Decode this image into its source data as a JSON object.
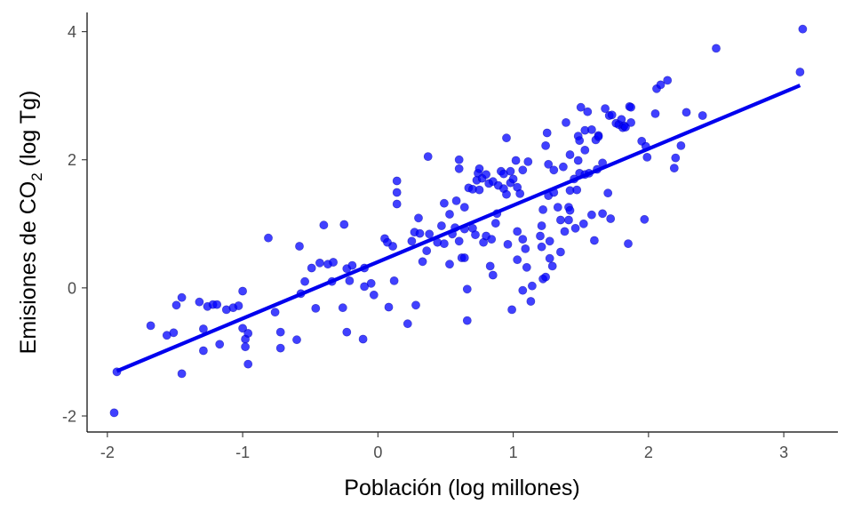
{
  "chart_data": {
    "type": "scatter",
    "xlabel": "Población (log millones)",
    "ylabel": {
      "pre": "Emisiones de CO",
      "sub": "2",
      "post": " (log Tg)"
    },
    "xlim": [
      -2.15,
      3.4
    ],
    "ylim": [
      -2.25,
      4.3
    ],
    "xticks": [
      -2,
      -1,
      0,
      1,
      2,
      3
    ],
    "yticks": [
      -2,
      0,
      2,
      4
    ],
    "xtick_labels": [
      "-2",
      "-1",
      "0",
      "1",
      "2",
      "3"
    ],
    "ytick_labels": [
      "-2",
      "0",
      "2",
      "4"
    ],
    "grid": false,
    "point_color": "#0000ff",
    "line_color": "#0000ee",
    "fit_line": {
      "x": [
        -1.93,
        3.12
      ],
      "y": [
        -1.3,
        3.16
      ]
    },
    "points": [
      [
        -1.95,
        -1.95
      ],
      [
        -1.93,
        -1.31
      ],
      [
        -1.68,
        -0.59
      ],
      [
        -1.56,
        -0.74
      ],
      [
        -1.51,
        -0.7
      ],
      [
        -1.49,
        -0.27
      ],
      [
        -1.45,
        -0.15
      ],
      [
        -1.45,
        -1.34
      ],
      [
        -1.32,
        -0.22
      ],
      [
        -1.29,
        -0.64
      ],
      [
        -1.29,
        -0.98
      ],
      [
        -1.26,
        -0.29
      ],
      [
        -1.22,
        -0.26
      ],
      [
        -1.19,
        -0.26
      ],
      [
        -1.17,
        -0.88
      ],
      [
        -1.12,
        -0.34
      ],
      [
        -1.07,
        -0.31
      ],
      [
        -1.03,
        -0.28
      ],
      [
        -1.0,
        -0.05
      ],
      [
        -1.0,
        -0.63
      ],
      [
        -0.98,
        -0.8
      ],
      [
        -0.98,
        -0.92
      ],
      [
        -0.96,
        -0.71
      ],
      [
        -0.96,
        -1.19
      ],
      [
        -0.81,
        0.78
      ],
      [
        -0.76,
        -0.38
      ],
      [
        -0.72,
        -0.94
      ],
      [
        -0.72,
        -0.69
      ],
      [
        -0.6,
        -0.81
      ],
      [
        -0.58,
        0.65
      ],
      [
        -0.57,
        -0.09
      ],
      [
        -0.54,
        0.1
      ],
      [
        -0.49,
        0.31
      ],
      [
        -0.46,
        -0.32
      ],
      [
        -0.43,
        0.39
      ],
      [
        -0.4,
        0.98
      ],
      [
        -0.37,
        0.37
      ],
      [
        -0.34,
        0.1
      ],
      [
        -0.33,
        0.4
      ],
      [
        -0.26,
        -0.31
      ],
      [
        -0.25,
        0.99
      ],
      [
        -0.23,
        0.3
      ],
      [
        -0.23,
        -0.69
      ],
      [
        -0.21,
        0.11
      ],
      [
        -0.19,
        0.35
      ],
      [
        -0.11,
        -0.8
      ],
      [
        -0.1,
        0.31
      ],
      [
        -0.1,
        0.02
      ],
      [
        -0.05,
        0.07
      ],
      [
        -0.03,
        -0.11
      ],
      [
        0.05,
        0.77
      ],
      [
        0.07,
        0.71
      ],
      [
        0.08,
        -0.3
      ],
      [
        0.11,
        0.65
      ],
      [
        0.12,
        0.11
      ],
      [
        0.14,
        1.67
      ],
      [
        0.14,
        1.49
      ],
      [
        0.14,
        1.31
      ],
      [
        0.22,
        -0.56
      ],
      [
        0.25,
        0.73
      ],
      [
        0.27,
        0.87
      ],
      [
        0.28,
        -0.27
      ],
      [
        0.3,
        1.09
      ],
      [
        0.31,
        0.85
      ],
      [
        0.33,
        0.41
      ],
      [
        0.36,
        0.58
      ],
      [
        0.37,
        2.05
      ],
      [
        0.38,
        0.84
      ],
      [
        0.44,
        0.71
      ],
      [
        0.47,
        0.97
      ],
      [
        0.49,
        1.32
      ],
      [
        0.49,
        0.69
      ],
      [
        0.53,
        1.15
      ],
      [
        0.53,
        0.37
      ],
      [
        0.55,
        0.84
      ],
      [
        0.57,
        0.94
      ],
      [
        0.58,
        1.36
      ],
      [
        0.6,
        2.0
      ],
      [
        0.6,
        1.86
      ],
      [
        0.6,
        0.73
      ],
      [
        0.62,
        0.47
      ],
      [
        0.64,
        0.92
      ],
      [
        0.64,
        1.26
      ],
      [
        0.64,
        0.47
      ],
      [
        0.66,
        -0.02
      ],
      [
        0.66,
        -0.51
      ],
      [
        0.67,
        1.56
      ],
      [
        0.7,
        0.93
      ],
      [
        0.7,
        1.54
      ],
      [
        0.72,
        0.83
      ],
      [
        0.73,
        1.68
      ],
      [
        0.74,
        1.79
      ],
      [
        0.75,
        1.86
      ],
      [
        0.75,
        1.53
      ],
      [
        0.77,
        1.71
      ],
      [
        0.78,
        0.71
      ],
      [
        0.8,
        1.77
      ],
      [
        0.8,
        0.81
      ],
      [
        0.82,
        1.63
      ],
      [
        0.83,
        0.34
      ],
      [
        0.84,
        0.76
      ],
      [
        0.85,
        1.66
      ],
      [
        0.85,
        0.2
      ],
      [
        0.87,
        1.01
      ],
      [
        0.88,
        1.16
      ],
      [
        0.89,
        1.6
      ],
      [
        0.91,
        1.82
      ],
      [
        0.93,
        1.55
      ],
      [
        0.93,
        1.78
      ],
      [
        0.95,
        1.46
      ],
      [
        0.95,
        2.34
      ],
      [
        0.96,
        0.68
      ],
      [
        0.98,
        1.64
      ],
      [
        0.98,
        1.82
      ],
      [
        0.99,
        -0.34
      ],
      [
        1.0,
        1.7
      ],
      [
        1.02,
        1.99
      ],
      [
        1.03,
        1.57
      ],
      [
        1.03,
        0.44
      ],
      [
        1.03,
        0.88
      ],
      [
        1.05,
        1.47
      ],
      [
        1.07,
        0.76
      ],
      [
        1.07,
        -0.04
      ],
      [
        1.07,
        1.84
      ],
      [
        1.09,
        0.61
      ],
      [
        1.1,
        0.32
      ],
      [
        1.11,
        1.97
      ],
      [
        1.13,
        -0.21
      ],
      [
        1.14,
        0.03
      ],
      [
        1.2,
        0.81
      ],
      [
        1.21,
        0.64
      ],
      [
        1.21,
        0.97
      ],
      [
        1.22,
        1.22
      ],
      [
        1.22,
        0.14
      ],
      [
        1.24,
        2.22
      ],
      [
        1.24,
        0.17
      ],
      [
        1.25,
        2.42
      ],
      [
        1.26,
        1.93
      ],
      [
        1.26,
        1.44
      ],
      [
        1.27,
        0.73
      ],
      [
        1.27,
        0.46
      ],
      [
        1.29,
        0.34
      ],
      [
        1.3,
        1.84
      ],
      [
        1.3,
        1.49
      ],
      [
        1.33,
        1.26
      ],
      [
        1.35,
        1.06
      ],
      [
        1.35,
        0.56
      ],
      [
        1.37,
        1.89
      ],
      [
        1.38,
        0.88
      ],
      [
        1.39,
        2.58
      ],
      [
        1.41,
        1.06
      ],
      [
        1.41,
        1.26
      ],
      [
        1.42,
        2.08
      ],
      [
        1.42,
        1.21
      ],
      [
        1.42,
        1.52
      ],
      [
        1.45,
        1.7
      ],
      [
        1.46,
        0.93
      ],
      [
        1.47,
        1.53
      ],
      [
        1.48,
        2.37
      ],
      [
        1.48,
        1.99
      ],
      [
        1.49,
        2.3
      ],
      [
        1.49,
        1.79
      ],
      [
        1.5,
        2.82
      ],
      [
        1.52,
        1.0
      ],
      [
        1.53,
        1.77
      ],
      [
        1.53,
        2.15
      ],
      [
        1.53,
        2.46
      ],
      [
        1.55,
        2.75
      ],
      [
        1.56,
        1.79
      ],
      [
        1.58,
        2.47
      ],
      [
        1.58,
        1.14
      ],
      [
        1.6,
        0.74
      ],
      [
        1.61,
        2.31
      ],
      [
        1.62,
        1.85
      ],
      [
        1.63,
        2.38
      ],
      [
        1.63,
        2.36
      ],
      [
        1.66,
        1.95
      ],
      [
        1.66,
        1.16
      ],
      [
        1.68,
        2.8
      ],
      [
        1.7,
        1.48
      ],
      [
        1.71,
        2.69
      ],
      [
        1.72,
        1.08
      ],
      [
        1.73,
        2.7
      ],
      [
        1.76,
        2.57
      ],
      [
        1.78,
        2.55
      ],
      [
        1.8,
        2.63
      ],
      [
        1.81,
        2.5
      ],
      [
        1.82,
        2.53
      ],
      [
        1.83,
        2.51
      ],
      [
        1.85,
        0.69
      ],
      [
        1.86,
        2.83
      ],
      [
        1.87,
        2.82
      ],
      [
        1.87,
        2.58
      ],
      [
        1.95,
        2.29
      ],
      [
        1.97,
        1.07
      ],
      [
        1.98,
        2.21
      ],
      [
        1.99,
        2.04
      ],
      [
        2.05,
        2.72
      ],
      [
        2.06,
        3.11
      ],
      [
        2.09,
        3.17
      ],
      [
        2.14,
        3.24
      ],
      [
        2.19,
        1.87
      ],
      [
        2.2,
        2.03
      ],
      [
        2.24,
        2.22
      ],
      [
        2.28,
        2.74
      ],
      [
        2.4,
        2.69
      ],
      [
        2.5,
        3.74
      ],
      [
        3.12,
        3.37
      ],
      [
        3.14,
        4.04
      ]
    ]
  }
}
